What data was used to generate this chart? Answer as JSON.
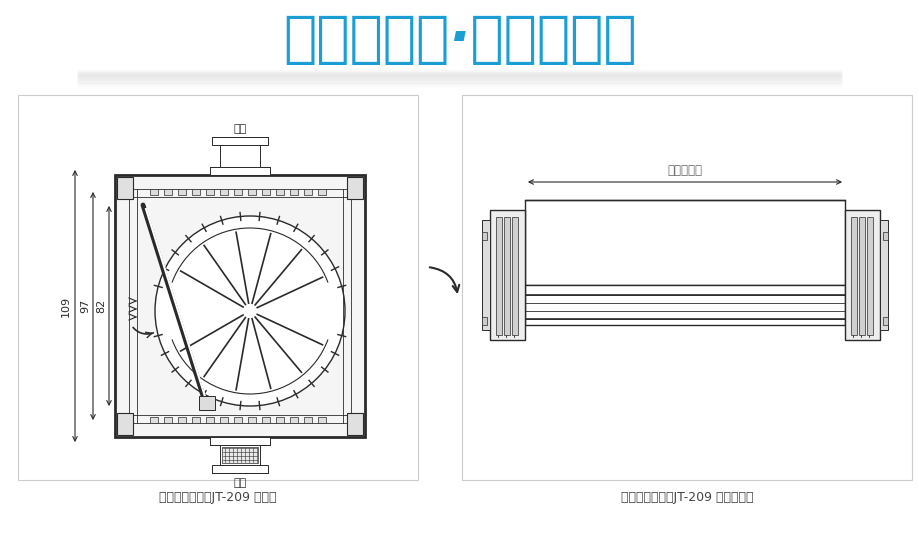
{
  "title": "空气要清新·家泰更贴心",
  "title_color": "#1b9ed4",
  "bg_color": "#ffffff",
  "line_color": "#2a2a2a",
  "gray_color": "#999999",
  "label1": "门窗自然通风器JT-209 节点图",
  "label2": "门窗自然通风器JT-209 俯视节点图",
  "dim_109": "109",
  "dim_97": "97",
  "dim_82": "82",
  "text_ketiao_top": "可调",
  "text_ketiao_bot": "可调",
  "text_full_length": "通风器全长",
  "panel_border_color": "#cccccc",
  "shadow_color": "#cccccc"
}
